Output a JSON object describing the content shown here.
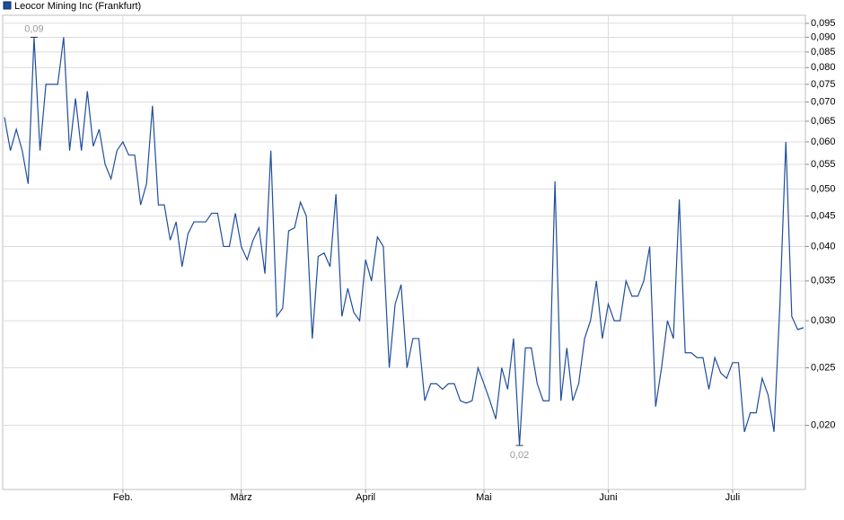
{
  "chart_data": {
    "type": "line",
    "legend": "Leocor Mining Inc (Frankfurt)",
    "log_scale": true,
    "grid": true,
    "series": [
      {
        "name": "Leocor Mining Inc (Frankfurt)",
        "color": "#1f4e9c",
        "values": [
          0.066,
          0.058,
          0.063,
          0.058,
          0.051,
          0.09,
          0.058,
          0.075,
          0.075,
          0.075,
          0.09,
          0.058,
          0.071,
          0.058,
          0.073,
          0.059,
          0.063,
          0.055,
          0.052,
          0.058,
          0.06,
          0.057,
          0.057,
          0.047,
          0.051,
          0.069,
          0.047,
          0.047,
          0.041,
          0.044,
          0.037,
          0.042,
          0.044,
          0.044,
          0.044,
          0.0455,
          0.0455,
          0.04,
          0.04,
          0.0455,
          0.04,
          0.038,
          0.041,
          0.043,
          0.036,
          0.058,
          0.0305,
          0.0315,
          0.0425,
          0.043,
          0.0475,
          0.045,
          0.028,
          0.0385,
          0.039,
          0.037,
          0.049,
          0.0305,
          0.034,
          0.031,
          0.03,
          0.038,
          0.035,
          0.0415,
          0.04,
          0.025,
          0.032,
          0.0345,
          0.025,
          0.028,
          0.028,
          0.022,
          0.0235,
          0.0235,
          0.023,
          0.0235,
          0.0235,
          0.022,
          0.0218,
          0.022,
          0.025,
          0.0235,
          0.022,
          0.0205,
          0.025,
          0.023,
          0.028,
          0.0185,
          0.027,
          0.027,
          0.0235,
          0.022,
          0.022,
          0.0515,
          0.022,
          0.027,
          0.022,
          0.0235,
          0.028,
          0.03,
          0.035,
          0.028,
          0.032,
          0.03,
          0.03,
          0.035,
          0.033,
          0.033,
          0.035,
          0.04,
          0.0215,
          0.025,
          0.03,
          0.028,
          0.048,
          0.0265,
          0.0265,
          0.026,
          0.026,
          0.023,
          0.026,
          0.0245,
          0.024,
          0.0255,
          0.0255,
          0.0195,
          0.021,
          0.021,
          0.024,
          0.0225,
          0.0195,
          0.032,
          0.06,
          0.0305,
          0.029,
          0.0292
        ]
      }
    ],
    "xlim": [
      -0.3,
      135.3
    ],
    "xticks": [
      {
        "value": 20,
        "label": "Feb."
      },
      {
        "value": 40,
        "label": "März"
      },
      {
        "value": 61,
        "label": "April"
      },
      {
        "value": 81,
        "label": "Mai"
      },
      {
        "value": 102,
        "label": "Juni"
      },
      {
        "value": 123,
        "label": "Juli"
      }
    ],
    "ylim": [
      0.0156,
      0.098
    ],
    "yticks": [
      {
        "value": 0.02,
        "label": "0,020"
      },
      {
        "value": 0.025,
        "label": "0,025"
      },
      {
        "value": 0.03,
        "label": "0,030"
      },
      {
        "value": 0.035,
        "label": "0,035"
      },
      {
        "value": 0.04,
        "label": "0,040"
      },
      {
        "value": 0.045,
        "label": "0,045"
      },
      {
        "value": 0.05,
        "label": "0,050"
      },
      {
        "value": 0.055,
        "label": "0,055"
      },
      {
        "value": 0.06,
        "label": "0,060"
      },
      {
        "value": 0.065,
        "label": "0,065"
      },
      {
        "value": 0.07,
        "label": "0,070"
      },
      {
        "value": 0.075,
        "label": "0,075"
      },
      {
        "value": 0.08,
        "label": "0,080"
      },
      {
        "value": 0.085,
        "label": "0,085"
      },
      {
        "value": 0.09,
        "label": "0,090"
      },
      {
        "value": 0.095,
        "label": "0,095"
      }
    ],
    "annotations": [
      {
        "text": "0,09",
        "x": 5,
        "y": 0.09,
        "position": "above"
      },
      {
        "text": "0,02",
        "x": 87,
        "y": 0.0185,
        "position": "below"
      }
    ]
  }
}
